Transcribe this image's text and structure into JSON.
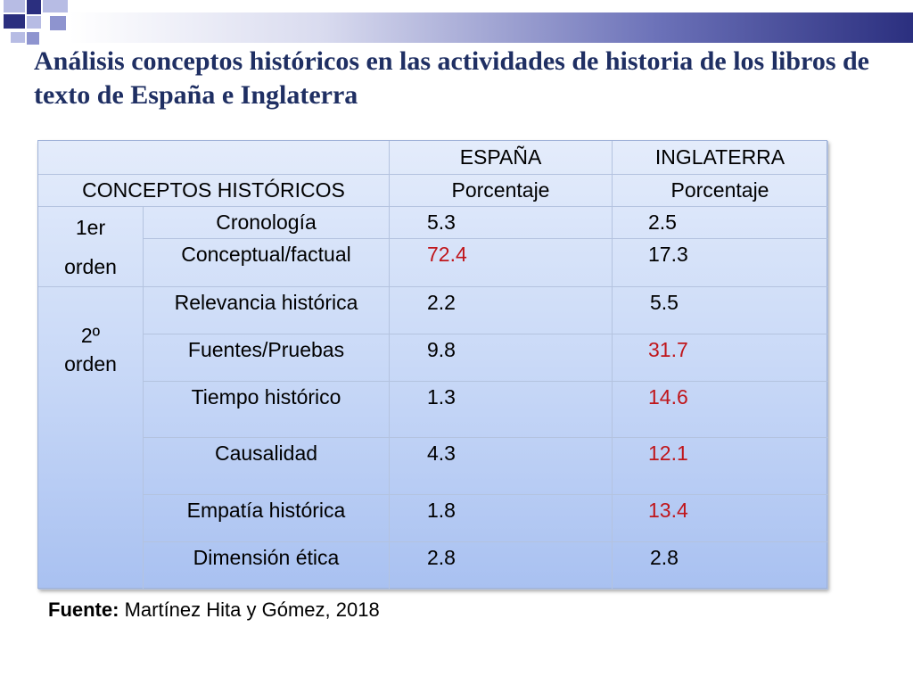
{
  "title": "Análisis conceptos históricos en las actividades de historia de los libros de texto de España e Inglaterra",
  "table": {
    "header": {
      "country_1": "ESPAÑA",
      "country_2": "INGLATERRA",
      "concepts_label": "CONCEPTOS HISTÓRICOS",
      "metric_1": "Porcentaje",
      "metric_2": "Porcentaje"
    },
    "groups": [
      {
        "label_line1": "1er",
        "label_line2": "orden",
        "rows": [
          {
            "concept": "Cronología",
            "espana": "5.3",
            "inglaterra": "2.5",
            "espana_highlight": false,
            "inglaterra_highlight": false
          },
          {
            "concept": "Conceptual/factual",
            "espana": "72.4",
            "inglaterra": "17.3",
            "espana_highlight": true,
            "inglaterra_highlight": false
          }
        ]
      },
      {
        "label_line1": "2º",
        "label_line2": "orden",
        "rows": [
          {
            "concept": "Relevancia histórica",
            "espana": "2.2",
            "inglaterra": "5.5",
            "espana_highlight": false,
            "inglaterra_highlight": false
          },
          {
            "concept": "Fuentes/Pruebas",
            "espana": "9.8",
            "inglaterra": "31.7",
            "espana_highlight": false,
            "inglaterra_highlight": true
          },
          {
            "concept": "Tiempo histórico",
            "espana": "1.3",
            "inglaterra": "14.6",
            "espana_highlight": false,
            "inglaterra_highlight": true
          },
          {
            "concept": "Causalidad",
            "espana": "4.3",
            "inglaterra": "12.1",
            "espana_highlight": false,
            "inglaterra_highlight": true
          },
          {
            "concept": "Empatía histórica",
            "espana": "1.8",
            "inglaterra": "13.4",
            "espana_highlight": false,
            "inglaterra_highlight": true
          },
          {
            "concept": "Dimensión ética",
            "espana": "2.8",
            "inglaterra": "2.8",
            "espana_highlight": false,
            "inglaterra_highlight": false
          }
        ]
      }
    ]
  },
  "source": {
    "label": "Fuente:",
    "text": " Martínez Hita y Gómez, 2018"
  },
  "colors": {
    "title": "#1f2f63",
    "highlight": "#c0161b",
    "accent": "#2b2f7f"
  }
}
